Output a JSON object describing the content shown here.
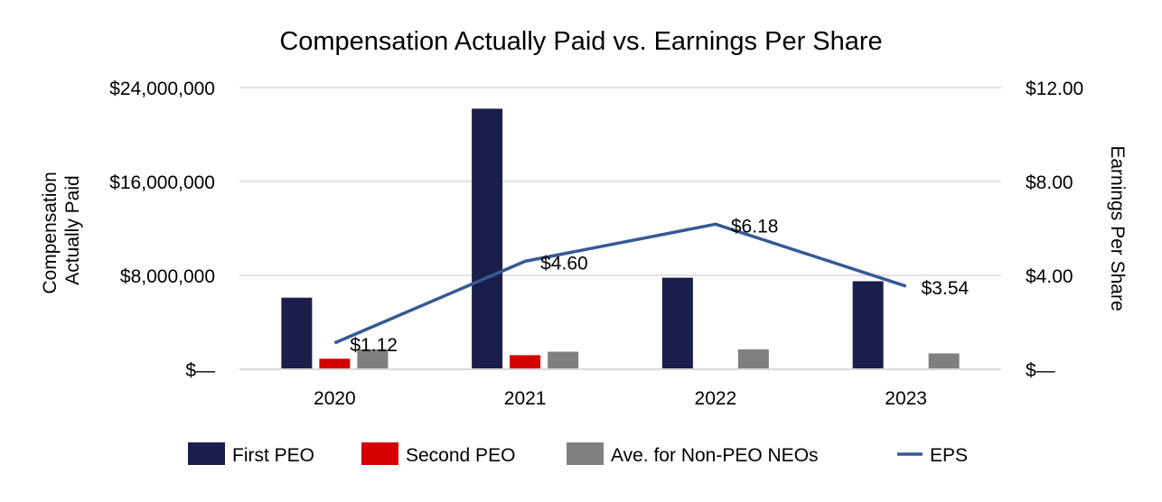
{
  "chart_data": {
    "type": "bar",
    "title": "Compensation Actually Paid vs. Earnings Per Share",
    "ylabel_left": [
      "Compensation",
      "Actually Paid"
    ],
    "ylabel_right": "Earnings Per Share",
    "categories": [
      "2020",
      "2021",
      "2022",
      "2023"
    ],
    "left_axis": {
      "min": 0,
      "max": 24000000,
      "ticks": [
        0,
        8000000,
        16000000,
        24000000
      ],
      "tick_labels": [
        "$—",
        "$8,000,000",
        "$16,000,000",
        "$24,000,000"
      ]
    },
    "right_axis": {
      "min": 0,
      "max": 12,
      "ticks": [
        0,
        4,
        8,
        12
      ],
      "tick_labels": [
        "$—",
        "$4.00",
        "$8.00",
        "$12.00"
      ]
    },
    "gridlines": true,
    "legend_position": "bottom",
    "series": [
      {
        "name": "First PEO",
        "kind": "bar",
        "axis": "left",
        "color": "#1b1d4b",
        "values": [
          6100000,
          22200000,
          7800000,
          7500000
        ]
      },
      {
        "name": "Second PEO",
        "kind": "bar",
        "axis": "left",
        "color": "#d40000",
        "values": [
          900000,
          1200000,
          null,
          null
        ]
      },
      {
        "name": "Ave. for Non-PEO NEOs",
        "kind": "bar",
        "axis": "left",
        "color": "#808080",
        "values": [
          1700000,
          1500000,
          1700000,
          1350000
        ]
      },
      {
        "name": "EPS",
        "kind": "line",
        "axis": "right",
        "color": "#345a94",
        "values": [
          1.12,
          4.6,
          6.18,
          3.54
        ],
        "data_labels": [
          "$1.12",
          "$4.60",
          "$6.18",
          "$3.54"
        ]
      }
    ]
  }
}
